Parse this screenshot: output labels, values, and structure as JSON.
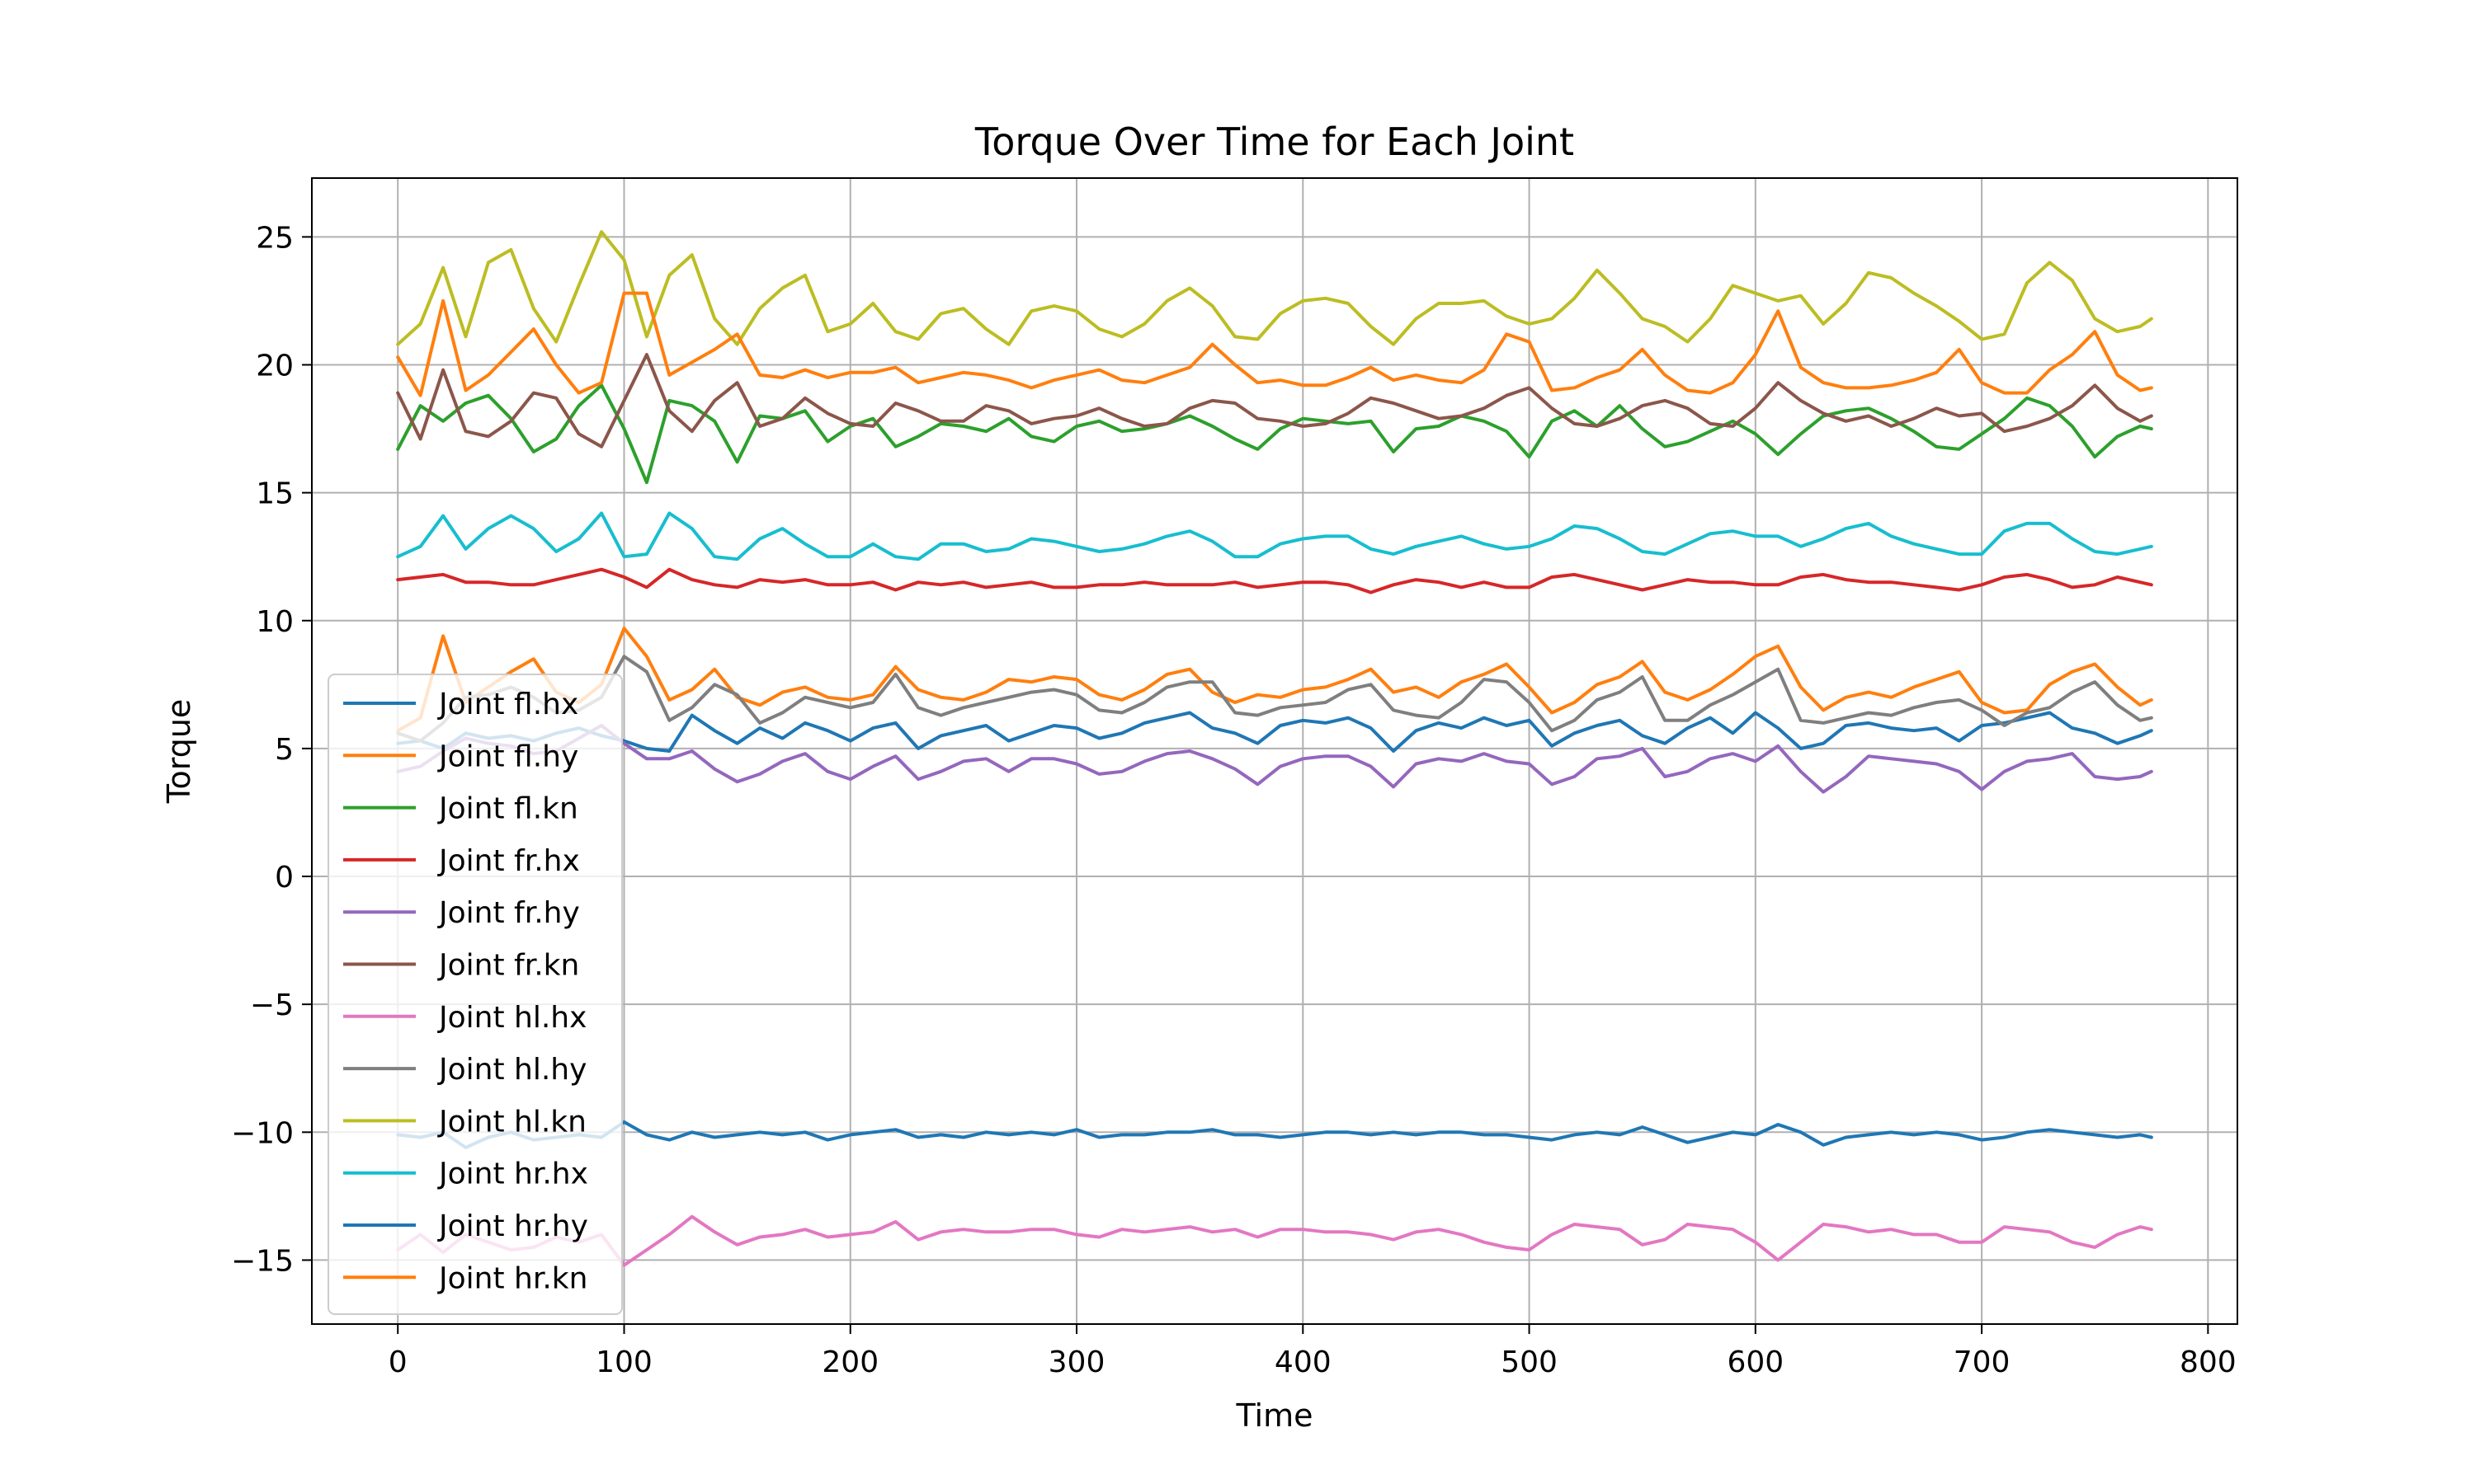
{
  "chart_data": {
    "type": "line",
    "title": "Torque Over Time for Each Joint",
    "xlabel": "Time",
    "ylabel": "Torque",
    "xlim": [
      -38,
      813
    ],
    "ylim": [
      -17.5,
      27.3
    ],
    "xticks": [
      0,
      100,
      200,
      300,
      400,
      500,
      600,
      700,
      800
    ],
    "yticks": [
      -15,
      -10,
      -5,
      0,
      5,
      10,
      15,
      20,
      25
    ],
    "xtick_labels": [
      "0",
      "100",
      "200",
      "300",
      "400",
      "500",
      "600",
      "700",
      "800"
    ],
    "ytick_labels": [
      "−15",
      "−10",
      "−5",
      "0",
      "5",
      "10",
      "15",
      "20",
      "25"
    ],
    "grid": true,
    "legend_position": "lower-left",
    "x": [
      0,
      10,
      20,
      30,
      40,
      50,
      60,
      70,
      80,
      90,
      100,
      110,
      120,
      130,
      140,
      150,
      160,
      170,
      180,
      190,
      200,
      210,
      220,
      230,
      240,
      250,
      260,
      270,
      280,
      290,
      300,
      310,
      320,
      330,
      340,
      350,
      360,
      370,
      380,
      390,
      400,
      410,
      420,
      430,
      440,
      450,
      460,
      470,
      480,
      490,
      500,
      510,
      520,
      530,
      540,
      550,
      560,
      570,
      580,
      590,
      600,
      610,
      620,
      630,
      640,
      650,
      660,
      670,
      680,
      690,
      700,
      710,
      720,
      730,
      740,
      750,
      760,
      770,
      775
    ],
    "series": [
      {
        "name": "Joint fl.hx",
        "color": "#1f77b4",
        "values": [
          5.2,
          5.3,
          5.0,
          5.6,
          5.4,
          5.5,
          5.3,
          5.6,
          5.8,
          5.5,
          5.3,
          5.0,
          4.9,
          6.3,
          5.7,
          5.2,
          5.8,
          5.4,
          6.0,
          5.7,
          5.3,
          5.8,
          6.0,
          5.0,
          5.5,
          5.7,
          5.9,
          5.3,
          5.6,
          5.9,
          5.8,
          5.4,
          5.6,
          6.0,
          6.2,
          6.4,
          5.8,
          5.6,
          5.2,
          5.9,
          6.1,
          6.0,
          6.2,
          5.8,
          4.9,
          5.7,
          6.0,
          5.8,
          6.2,
          5.9,
          6.1,
          5.1,
          5.6,
          5.9,
          6.1,
          5.5,
          5.2,
          5.8,
          6.2,
          5.6,
          6.4,
          5.8,
          5.0,
          5.2,
          5.9,
          6.0,
          5.8,
          5.7,
          5.8,
          5.3,
          5.9,
          6.0,
          6.2,
          6.4,
          5.8,
          5.6,
          5.2,
          5.5,
          5.7
        ]
      },
      {
        "name": "Joint fl.hy",
        "color": "#ff7f0e",
        "values": [
          5.7,
          6.2,
          9.4,
          6.8,
          7.4,
          8.0,
          8.5,
          7.2,
          6.8,
          7.5,
          9.7,
          8.6,
          6.9,
          7.3,
          8.1,
          7.0,
          6.7,
          7.2,
          7.4,
          7.0,
          6.9,
          7.1,
          8.2,
          7.3,
          7.0,
          6.9,
          7.2,
          7.7,
          7.6,
          7.8,
          7.7,
          7.1,
          6.9,
          7.3,
          7.9,
          8.1,
          7.2,
          6.8,
          7.1,
          7.0,
          7.3,
          7.4,
          7.7,
          8.1,
          7.2,
          7.4,
          7.0,
          7.6,
          7.9,
          8.3,
          7.4,
          6.4,
          6.8,
          7.5,
          7.8,
          8.4,
          7.2,
          6.9,
          7.3,
          7.9,
          8.6,
          9.0,
          7.4,
          6.5,
          7.0,
          7.2,
          7.0,
          7.4,
          7.7,
          8.0,
          6.8,
          6.4,
          6.5,
          7.5,
          8.0,
          8.3,
          7.4,
          6.7,
          6.9
        ]
      },
      {
        "name": "Joint fl.kn",
        "color": "#2ca02c",
        "values": [
          16.7,
          18.4,
          17.8,
          18.5,
          18.8,
          17.9,
          16.6,
          17.1,
          18.4,
          19.2,
          17.5,
          15.4,
          18.6,
          18.4,
          17.8,
          16.2,
          18.0,
          17.9,
          18.2,
          17.0,
          17.6,
          17.9,
          16.8,
          17.2,
          17.7,
          17.6,
          17.4,
          17.9,
          17.2,
          17.0,
          17.6,
          17.8,
          17.4,
          17.5,
          17.7,
          18.0,
          17.6,
          17.1,
          16.7,
          17.5,
          17.9,
          17.8,
          17.7,
          17.8,
          16.6,
          17.5,
          17.6,
          18.0,
          17.8,
          17.4,
          16.4,
          17.8,
          18.2,
          17.6,
          18.4,
          17.5,
          16.8,
          17.0,
          17.4,
          17.8,
          17.3,
          16.5,
          17.3,
          18.0,
          18.2,
          18.3,
          17.9,
          17.4,
          16.8,
          16.7,
          17.3,
          17.9,
          18.7,
          18.4,
          17.6,
          16.4,
          17.2,
          17.6,
          17.5
        ]
      },
      {
        "name": "Joint fr.hx",
        "color": "#d62728",
        "values": [
          11.6,
          11.7,
          11.8,
          11.5,
          11.5,
          11.4,
          11.4,
          11.6,
          11.8,
          12.0,
          11.7,
          11.3,
          12.0,
          11.6,
          11.4,
          11.3,
          11.6,
          11.5,
          11.6,
          11.4,
          11.4,
          11.5,
          11.2,
          11.5,
          11.4,
          11.5,
          11.3,
          11.4,
          11.5,
          11.3,
          11.3,
          11.4,
          11.4,
          11.5,
          11.4,
          11.4,
          11.4,
          11.5,
          11.3,
          11.4,
          11.5,
          11.5,
          11.4,
          11.1,
          11.4,
          11.6,
          11.5,
          11.3,
          11.5,
          11.3,
          11.3,
          11.7,
          11.8,
          11.6,
          11.4,
          11.2,
          11.4,
          11.6,
          11.5,
          11.5,
          11.4,
          11.4,
          11.7,
          11.8,
          11.6,
          11.5,
          11.5,
          11.4,
          11.3,
          11.2,
          11.4,
          11.7,
          11.8,
          11.6,
          11.3,
          11.4,
          11.7,
          11.5,
          11.4
        ]
      },
      {
        "name": "Joint fr.hy",
        "color": "#9467bd",
        "values": [
          4.1,
          4.3,
          4.9,
          5.4,
          5.2,
          5.1,
          4.8,
          4.9,
          5.4,
          5.9,
          5.2,
          4.6,
          4.6,
          4.9,
          4.2,
          3.7,
          4.0,
          4.5,
          4.8,
          4.1,
          3.8,
          4.3,
          4.7,
          3.8,
          4.1,
          4.5,
          4.6,
          4.1,
          4.6,
          4.6,
          4.4,
          4.0,
          4.1,
          4.5,
          4.8,
          4.9,
          4.6,
          4.2,
          3.6,
          4.3,
          4.6,
          4.7,
          4.7,
          4.3,
          3.5,
          4.4,
          4.6,
          4.5,
          4.8,
          4.5,
          4.4,
          3.6,
          3.9,
          4.6,
          4.7,
          5.0,
          3.9,
          4.1,
          4.6,
          4.8,
          4.5,
          5.1,
          4.1,
          3.3,
          3.9,
          4.7,
          4.6,
          4.5,
          4.4,
          4.1,
          3.4,
          4.1,
          4.5,
          4.6,
          4.8,
          3.9,
          3.8,
          3.9,
          4.1
        ]
      },
      {
        "name": "Joint fr.kn",
        "color": "#8c564b",
        "values": [
          18.9,
          17.1,
          19.8,
          17.4,
          17.2,
          17.8,
          18.9,
          18.7,
          17.3,
          16.8,
          18.6,
          20.4,
          18.2,
          17.4,
          18.6,
          19.3,
          17.6,
          17.9,
          18.7,
          18.1,
          17.7,
          17.6,
          18.5,
          18.2,
          17.8,
          17.8,
          18.4,
          18.2,
          17.7,
          17.9,
          18.0,
          18.3,
          17.9,
          17.6,
          17.7,
          18.3,
          18.6,
          18.5,
          17.9,
          17.8,
          17.6,
          17.7,
          18.1,
          18.7,
          18.5,
          18.2,
          17.9,
          18.0,
          18.3,
          18.8,
          19.1,
          18.3,
          17.7,
          17.6,
          17.9,
          18.4,
          18.6,
          18.3,
          17.7,
          17.6,
          18.3,
          19.3,
          18.6,
          18.1,
          17.8,
          18.0,
          17.6,
          17.9,
          18.3,
          18.0,
          18.1,
          17.4,
          17.6,
          17.9,
          18.4,
          19.2,
          18.3,
          17.8,
          18.0
        ]
      },
      {
        "name": "Joint hl.hx",
        "color": "#e377c2",
        "values": [
          -14.6,
          -14.0,
          -14.7,
          -14.0,
          -14.3,
          -14.6,
          -14.5,
          -14.1,
          -14.3,
          -14.0,
          -15.2,
          -14.6,
          -14.0,
          -13.3,
          -13.9,
          -14.4,
          -14.1,
          -14.0,
          -13.8,
          -14.1,
          -14.0,
          -13.9,
          -13.5,
          -14.2,
          -13.9,
          -13.8,
          -13.9,
          -13.9,
          -13.8,
          -13.8,
          -14.0,
          -14.1,
          -13.8,
          -13.9,
          -13.8,
          -13.7,
          -13.9,
          -13.8,
          -14.1,
          -13.8,
          -13.8,
          -13.9,
          -13.9,
          -14.0,
          -14.2,
          -13.9,
          -13.8,
          -14.0,
          -14.3,
          -14.5,
          -14.6,
          -14.0,
          -13.6,
          -13.7,
          -13.8,
          -14.4,
          -14.2,
          -13.6,
          -13.7,
          -13.8,
          -14.3,
          -15.0,
          -14.3,
          -13.6,
          -13.7,
          -13.9,
          -13.8,
          -14.0,
          -14.0,
          -14.3,
          -14.3,
          -13.7,
          -13.8,
          -13.9,
          -14.3,
          -14.5,
          -14.0,
          -13.7,
          -13.8
        ]
      },
      {
        "name": "Joint hl.hy",
        "color": "#7f7f7f",
        "values": [
          5.6,
          5.3,
          6.0,
          7.0,
          7.1,
          7.4,
          7.0,
          6.4,
          6.5,
          7.0,
          8.6,
          8.0,
          6.1,
          6.6,
          7.5,
          7.1,
          6.0,
          6.4,
          7.0,
          6.8,
          6.6,
          6.8,
          7.9,
          6.6,
          6.3,
          6.6,
          6.8,
          7.0,
          7.2,
          7.3,
          7.1,
          6.5,
          6.4,
          6.8,
          7.4,
          7.6,
          7.6,
          6.4,
          6.3,
          6.6,
          6.7,
          6.8,
          7.3,
          7.5,
          6.5,
          6.3,
          6.2,
          6.8,
          7.7,
          7.6,
          6.8,
          5.7,
          6.1,
          6.9,
          7.2,
          7.8,
          6.1,
          6.1,
          6.7,
          7.1,
          7.6,
          8.1,
          6.1,
          6.0,
          6.2,
          6.4,
          6.3,
          6.6,
          6.8,
          6.9,
          6.5,
          5.9,
          6.4,
          6.6,
          7.2,
          7.6,
          6.7,
          6.1,
          6.2
        ]
      },
      {
        "name": "Joint hl.kn",
        "color": "#bcbd22",
        "values": [
          20.8,
          21.6,
          23.8,
          21.1,
          24.0,
          24.5,
          22.2,
          20.9,
          23.1,
          25.2,
          24.1,
          21.1,
          23.5,
          24.3,
          21.8,
          20.8,
          22.2,
          23.0,
          23.5,
          21.3,
          21.6,
          22.4,
          21.3,
          21.0,
          22.0,
          22.2,
          21.4,
          20.8,
          22.1,
          22.3,
          22.1,
          21.4,
          21.1,
          21.6,
          22.5,
          23.0,
          22.3,
          21.1,
          21.0,
          22.0,
          22.5,
          22.6,
          22.4,
          21.5,
          20.8,
          21.8,
          22.4,
          22.4,
          22.5,
          21.9,
          21.6,
          21.8,
          22.6,
          23.7,
          22.8,
          21.8,
          21.5,
          20.9,
          21.8,
          23.1,
          22.8,
          22.5,
          22.7,
          21.6,
          22.4,
          23.6,
          23.4,
          22.8,
          22.3,
          21.7,
          21.0,
          21.2,
          23.2,
          24.0,
          23.3,
          21.8,
          21.3,
          21.5,
          21.8
        ]
      },
      {
        "name": "Joint hr.hx",
        "color": "#17becf",
        "values": [
          12.5,
          12.9,
          14.1,
          12.8,
          13.6,
          14.1,
          13.6,
          12.7,
          13.2,
          14.2,
          12.5,
          12.6,
          14.2,
          13.6,
          12.5,
          12.4,
          13.2,
          13.6,
          13.0,
          12.5,
          12.5,
          13.0,
          12.5,
          12.4,
          13.0,
          13.0,
          12.7,
          12.8,
          13.2,
          13.1,
          12.9,
          12.7,
          12.8,
          13.0,
          13.3,
          13.5,
          13.1,
          12.5,
          12.5,
          13.0,
          13.2,
          13.3,
          13.3,
          12.8,
          12.6,
          12.9,
          13.1,
          13.3,
          13.0,
          12.8,
          12.9,
          13.2,
          13.7,
          13.6,
          13.2,
          12.7,
          12.6,
          13.0,
          13.4,
          13.5,
          13.3,
          13.3,
          12.9,
          13.2,
          13.6,
          13.8,
          13.3,
          13.0,
          12.8,
          12.6,
          12.6,
          13.5,
          13.8,
          13.8,
          13.2,
          12.7,
          12.6,
          12.8,
          12.9
        ]
      },
      {
        "name": "Joint hr.hy",
        "color": "#1f77b4",
        "values": [
          -10.1,
          -10.2,
          -10.0,
          -10.6,
          -10.2,
          -10.0,
          -10.3,
          -10.2,
          -10.1,
          -10.2,
          -9.6,
          -10.1,
          -10.3,
          -10.0,
          -10.2,
          -10.1,
          -10.0,
          -10.1,
          -10.0,
          -10.3,
          -10.1,
          -10.0,
          -9.9,
          -10.2,
          -10.1,
          -10.2,
          -10.0,
          -10.1,
          -10.0,
          -10.1,
          -9.9,
          -10.2,
          -10.1,
          -10.1,
          -10.0,
          -10.0,
          -9.9,
          -10.1,
          -10.1,
          -10.2,
          -10.1,
          -10.0,
          -10.0,
          -10.1,
          -10.0,
          -10.1,
          -10.0,
          -10.0,
          -10.1,
          -10.1,
          -10.2,
          -10.3,
          -10.1,
          -10.0,
          -10.1,
          -9.8,
          -10.1,
          -10.4,
          -10.2,
          -10.0,
          -10.1,
          -9.7,
          -10.0,
          -10.5,
          -10.2,
          -10.1,
          -10.0,
          -10.1,
          -10.0,
          -10.1,
          -10.3,
          -10.2,
          -10.0,
          -9.9,
          -10.0,
          -10.1,
          -10.2,
          -10.1,
          -10.2
        ]
      },
      {
        "name": "Joint hr.kn",
        "color": "#ff7f0e",
        "values": [
          20.3,
          18.8,
          22.5,
          19.0,
          19.6,
          20.5,
          21.4,
          20.0,
          18.9,
          19.3,
          22.8,
          22.8,
          19.6,
          20.1,
          20.6,
          21.2,
          19.6,
          19.5,
          19.8,
          19.5,
          19.7,
          19.7,
          19.9,
          19.3,
          19.5,
          19.7,
          19.6,
          19.4,
          19.1,
          19.4,
          19.6,
          19.8,
          19.4,
          19.3,
          19.6,
          19.9,
          20.8,
          20.0,
          19.3,
          19.4,
          19.2,
          19.2,
          19.5,
          19.9,
          19.4,
          19.6,
          19.4,
          19.3,
          19.8,
          21.2,
          20.9,
          19.0,
          19.1,
          19.5,
          19.8,
          20.6,
          19.6,
          19.0,
          18.9,
          19.3,
          20.4,
          22.1,
          19.9,
          19.3,
          19.1,
          19.1,
          19.2,
          19.4,
          19.7,
          20.6,
          19.3,
          18.9,
          18.9,
          19.8,
          20.4,
          21.3,
          19.6,
          19.0,
          19.1
        ]
      }
    ]
  }
}
